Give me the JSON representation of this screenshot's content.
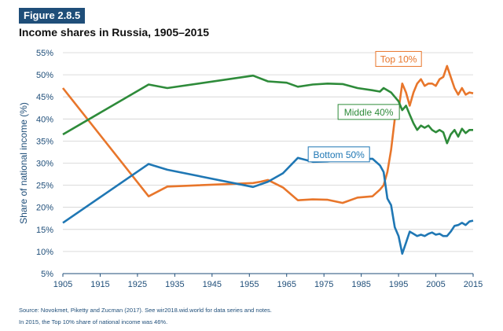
{
  "figure_label": "Figure 2.8.5",
  "title": "Income shares in Russia, 1905–2015",
  "source": "Source: Novokmet, Piketty and Zucman (2017). See wir2018.wid.world for data series and notes.",
  "note": "In 2015, the Top 10% share of national income was 46%.",
  "colors": {
    "top10": "#e8762b",
    "middle40": "#2e8b3a",
    "bottom50": "#1f77b4",
    "axis": "#1f4e79",
    "grid": "#d0d0d0"
  },
  "chart_data": {
    "type": "line",
    "ylabel": "Share of national income (%)",
    "xlabel": "",
    "xlim": [
      1905,
      2015
    ],
    "ylim": [
      5,
      55
    ],
    "x_ticks": [
      1905,
      1915,
      1925,
      1935,
      1945,
      1955,
      1965,
      1975,
      1985,
      1995,
      2005,
      2015
    ],
    "y_ticks": [
      5,
      10,
      15,
      20,
      25,
      30,
      35,
      40,
      45,
      50,
      55
    ],
    "y_tick_labels": [
      "5%",
      "10%",
      "15%",
      "20%",
      "25%",
      "30%",
      "35%",
      "40%",
      "45%",
      "50%",
      "55%"
    ],
    "grid": "horizontal",
    "series": [
      {
        "name": "Top 10%",
        "color_key": "top10",
        "points": [
          [
            1905,
            47
          ],
          [
            1928,
            22.5
          ],
          [
            1933,
            24.7
          ],
          [
            1956,
            25.5
          ],
          [
            1958,
            25.8
          ],
          [
            1960,
            26.2
          ],
          [
            1964,
            24.5
          ],
          [
            1968,
            21.6
          ],
          [
            1972,
            21.8
          ],
          [
            1976,
            21.7
          ],
          [
            1980,
            21
          ],
          [
            1984,
            22.2
          ],
          [
            1988,
            22.5
          ],
          [
            1990,
            24
          ],
          [
            1991,
            25
          ],
          [
            1992,
            28
          ],
          [
            1993,
            33
          ],
          [
            1994,
            40
          ],
          [
            1995,
            42
          ],
          [
            1996,
            48
          ],
          [
            1997,
            46
          ],
          [
            1998,
            43
          ],
          [
            1999,
            46
          ],
          [
            2000,
            48
          ],
          [
            2001,
            49
          ],
          [
            2002,
            47.5
          ],
          [
            2003,
            48
          ],
          [
            2004,
            48
          ],
          [
            2005,
            47.5
          ],
          [
            2006,
            49
          ],
          [
            2007,
            49.5
          ],
          [
            2008,
            52
          ],
          [
            2009,
            49.5
          ],
          [
            2010,
            47
          ],
          [
            2011,
            45.5
          ],
          [
            2012,
            47
          ],
          [
            2013,
            45.5
          ],
          [
            2014,
            46
          ],
          [
            2015,
            45.8
          ]
        ],
        "label_pos": [
          1995,
          53.5
        ]
      },
      {
        "name": "Middle 40%",
        "color_key": "middle40",
        "points": [
          [
            1905,
            36.5
          ],
          [
            1928,
            47.8
          ],
          [
            1933,
            47
          ],
          [
            1956,
            49.8
          ],
          [
            1960,
            48.5
          ],
          [
            1965,
            48.2
          ],
          [
            1968,
            47.3
          ],
          [
            1972,
            47.8
          ],
          [
            1976,
            48
          ],
          [
            1980,
            47.9
          ],
          [
            1984,
            47
          ],
          [
            1988,
            46.5
          ],
          [
            1990,
            46.2
          ],
          [
            1991,
            47
          ],
          [
            1993,
            46
          ],
          [
            1994,
            45
          ],
          [
            1995,
            44
          ],
          [
            1996,
            42
          ],
          [
            1997,
            43
          ],
          [
            1998,
            41
          ],
          [
            1999,
            39
          ],
          [
            2000,
            37.5
          ],
          [
            2001,
            38.5
          ],
          [
            2002,
            38
          ],
          [
            2003,
            38.5
          ],
          [
            2004,
            37.5
          ],
          [
            2005,
            37
          ],
          [
            2006,
            37.5
          ],
          [
            2007,
            37
          ],
          [
            2008,
            34.5
          ],
          [
            2009,
            36.5
          ],
          [
            2010,
            37.5
          ],
          [
            2011,
            36
          ],
          [
            2012,
            37.8
          ],
          [
            2013,
            36.8
          ],
          [
            2014,
            37.5
          ],
          [
            2015,
            37.5
          ]
        ],
        "label_pos": [
          1987,
          41.5
        ]
      },
      {
        "name": "Bottom 50%",
        "color_key": "bottom50",
        "points": [
          [
            1905,
            16.5
          ],
          [
            1928,
            29.8
          ],
          [
            1933,
            28.5
          ],
          [
            1956,
            24.6
          ],
          [
            1960,
            25.8
          ],
          [
            1964,
            27.7
          ],
          [
            1968,
            31.2
          ],
          [
            1972,
            30.3
          ],
          [
            1976,
            30.4
          ],
          [
            1980,
            31
          ],
          [
            1984,
            30.9
          ],
          [
            1988,
            31
          ],
          [
            1990,
            29.5
          ],
          [
            1991,
            28
          ],
          [
            1992,
            22
          ],
          [
            1993,
            20.5
          ],
          [
            1994,
            15.5
          ],
          [
            1995,
            13.5
          ],
          [
            1996,
            9.5
          ],
          [
            1997,
            12
          ],
          [
            1998,
            14.5
          ],
          [
            1999,
            14
          ],
          [
            2000,
            13.5
          ],
          [
            2001,
            13.8
          ],
          [
            2002,
            13.5
          ],
          [
            2003,
            14
          ],
          [
            2004,
            14.3
          ],
          [
            2005,
            13.8
          ],
          [
            2006,
            14
          ],
          [
            2007,
            13.5
          ],
          [
            2008,
            13.5
          ],
          [
            2009,
            14.5
          ],
          [
            2010,
            15.8
          ],
          [
            2011,
            16
          ],
          [
            2012,
            16.5
          ],
          [
            2013,
            16
          ],
          [
            2014,
            16.8
          ],
          [
            2015,
            17
          ]
        ],
        "label_pos": [
          1979,
          31.9
        ]
      }
    ]
  }
}
